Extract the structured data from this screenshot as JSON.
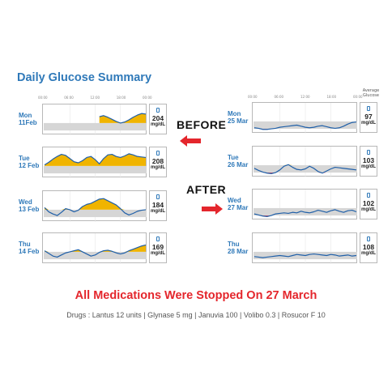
{
  "title": "Daily Glucose Summary",
  "avg_header": [
    "Average",
    "Glucose"
  ],
  "before_label": "BEFORE",
  "after_label": "AFTER",
  "stopped_note": "All Medications Were Stopped On 27 March",
  "drugs_line": "Drugs : Lantus 12 units  |  Glynase 5 mg  |  Januvia 100  |  Volibo 0.3  |  Rosucor F 10",
  "colors": {
    "line": "#1f5fa8",
    "band": "#d6d6d6",
    "high_fill": "#f0b400",
    "low_fill": "#e0233a",
    "accent": "#2f79b9",
    "arrow": "#e4262c"
  },
  "chart_data": {
    "type": "line",
    "x_ticks": [
      "00:00",
      "06:00",
      "12:00",
      "18:00",
      "00:00"
    ],
    "target_range": [
      70,
      140
    ],
    "ylim": [
      40,
      300
    ],
    "before": [
      {
        "day": "Mon",
        "date": "11Feb",
        "average": "204",
        "unit": "mg/dL",
        "start_hour": 13,
        "x": [
          13,
          14,
          15,
          16,
          17,
          18,
          19,
          20,
          21,
          22,
          23,
          24
        ],
        "y": [
          200,
          210,
          195,
          175,
          155,
          140,
          150,
          170,
          195,
          215,
          230,
          225
        ]
      },
      {
        "day": "Tue",
        "date": "12 Feb",
        "average": "208",
        "unit": "mg/dL",
        "x": [
          0,
          1,
          2,
          3,
          4,
          5,
          6,
          7,
          8,
          9,
          10,
          11,
          12,
          13,
          14,
          15,
          16,
          17,
          18,
          19,
          20,
          21,
          22,
          23,
          24
        ],
        "y": [
          150,
          175,
          205,
          230,
          250,
          240,
          210,
          180,
          170,
          190,
          220,
          230,
          200,
          160,
          210,
          245,
          250,
          230,
          220,
          235,
          255,
          245,
          230,
          225,
          220
        ]
      },
      {
        "day": "Wed",
        "date": "13 Feb",
        "average": "184",
        "unit": "mg/dL",
        "x": [
          0,
          1,
          2,
          3,
          4,
          5,
          6,
          7,
          8,
          9,
          10,
          11,
          12,
          13,
          14,
          15,
          16,
          17,
          18,
          19,
          20,
          21,
          22,
          23,
          24
        ],
        "y": [
          160,
          120,
          100,
          85,
          115,
          150,
          140,
          120,
          135,
          170,
          190,
          200,
          220,
          240,
          245,
          225,
          205,
          185,
          150,
          110,
          90,
          105,
          125,
          135,
          140
        ]
      },
      {
        "day": "Thu",
        "date": "14 Feb",
        "average": "169",
        "unit": "mg/dL",
        "x": [
          0,
          1,
          2,
          3,
          4,
          5,
          6,
          7,
          8,
          9,
          10,
          11,
          12,
          13,
          14,
          15,
          16,
          17,
          18,
          19,
          20,
          21,
          22,
          23,
          24
        ],
        "y": [
          150,
          125,
          100,
          90,
          110,
          130,
          140,
          150,
          160,
          140,
          120,
          100,
          110,
          135,
          150,
          155,
          145,
          130,
          120,
          130,
          150,
          165,
          180,
          195,
          205
        ]
      }
    ],
    "after": [
      {
        "day": "Mon",
        "date": "25 Mar",
        "average": "97",
        "unit": "mg/dL",
        "x": [
          0,
          1,
          2,
          3,
          4,
          5,
          6,
          7,
          8,
          9,
          10,
          11,
          12,
          13,
          14,
          15,
          16,
          17,
          18,
          19,
          20,
          21,
          22,
          23,
          24
        ],
        "y": [
          80,
          75,
          65,
          65,
          70,
          75,
          85,
          90,
          95,
          100,
          105,
          95,
          85,
          80,
          85,
          95,
          100,
          90,
          80,
          75,
          80,
          95,
          115,
          130,
          135
        ]
      },
      {
        "day": "Tue",
        "date": "26 Mar",
        "average": "103",
        "unit": "mg/dL",
        "x": [
          0,
          1,
          2,
          3,
          4,
          5,
          6,
          7,
          8,
          9,
          10,
          11,
          12,
          13,
          14,
          15,
          16,
          17,
          18,
          19,
          20,
          21,
          22,
          23,
          24
        ],
        "y": [
          110,
          90,
          75,
          65,
          60,
          70,
          95,
          130,
          145,
          120,
          100,
          95,
          105,
          130,
          110,
          80,
          65,
          85,
          105,
          120,
          115,
          110,
          105,
          100,
          95
        ]
      },
      {
        "day": "Wed",
        "date": "27 Mar",
        "average": "102",
        "unit": "mg/dL",
        "x": [
          0,
          1,
          2,
          3,
          4,
          5,
          6,
          7,
          8,
          9,
          10,
          11,
          12,
          13,
          14,
          15,
          16,
          17,
          18,
          19,
          20,
          21,
          22,
          23,
          24
        ],
        "y": [
          85,
          75,
          65,
          60,
          70,
          85,
          90,
          95,
          90,
          100,
          95,
          110,
          100,
          95,
          105,
          120,
          110,
          100,
          115,
          125,
          110,
          100,
          115,
          120,
          105
        ]
      },
      {
        "day": "Thu",
        "date": "28 Mar",
        "average": "108",
        "unit": "mg/dL",
        "x": [
          0,
          1,
          2,
          3,
          4,
          5,
          6,
          7,
          8,
          9,
          10,
          11,
          12,
          13,
          14,
          15,
          16,
          17,
          18,
          19,
          20,
          21,
          22,
          23,
          24
        ],
        "y": [
          95,
          90,
          85,
          90,
          95,
          100,
          105,
          100,
          95,
          105,
          115,
          110,
          105,
          115,
          120,
          115,
          110,
          105,
          115,
          110,
          100,
          105,
          110,
          100,
          105
        ]
      }
    ]
  }
}
